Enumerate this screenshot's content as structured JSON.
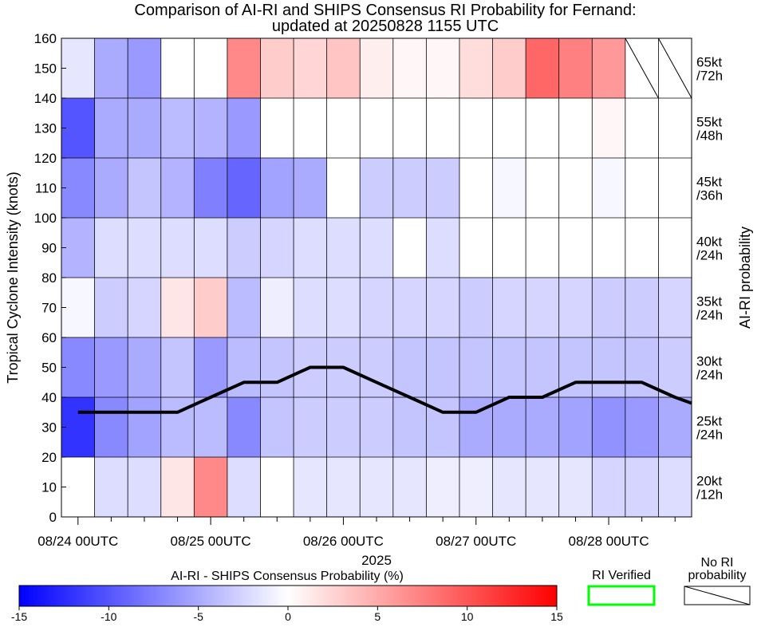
{
  "chart_data": {
    "type": "heatmap",
    "title_line1": "Comparison of AI-RI and SHIPS Consensus RI Probability for Fernand:",
    "title_line2": "updated at 20250828 1155 UTC",
    "ylabel": "Tropical Cyclone Intensity (knots)",
    "right_label": "AI-RI probability",
    "year_label": "2025",
    "ylim": [
      0,
      160
    ],
    "y_ticks": [
      0,
      10,
      20,
      30,
      40,
      50,
      60,
      70,
      80,
      90,
      100,
      110,
      120,
      130,
      140,
      150,
      160
    ],
    "x_tick_labels": [
      "08/24 00UTC",
      "08/25 00UTC",
      "08/26 00UTC",
      "08/27 00UTC",
      "08/28 00UTC"
    ],
    "x_tick_columns": [
      0,
      4,
      8,
      12,
      16
    ],
    "n_columns": 19,
    "column_interval_hours": 6,
    "rows": [
      {
        "label_line1": "20kt",
        "label_line2": "/12h",
        "y0": 0,
        "y1": 20,
        "values": [
          0,
          -2,
          -2,
          1.5,
          7,
          -2,
          0,
          -1.5,
          -1.5,
          -1.5,
          -1.5,
          -1,
          -1,
          -1.5,
          -1.5,
          -1.5,
          -2.5,
          -2.5,
          -2
        ]
      },
      {
        "label_line1": "25kt",
        "label_line2": "/24h",
        "y0": 20,
        "y1": 40,
        "values": [
          -12,
          -7,
          -5.5,
          -4,
          -4,
          -7,
          -3.5,
          -3,
          -3,
          -3,
          -3.5,
          -3.5,
          -5,
          -5,
          -5,
          -5.5,
          -6.5,
          -6,
          -5
        ]
      },
      {
        "label_line1": "30kt",
        "label_line2": "/24h",
        "y0": 40,
        "y1": 60,
        "values": [
          -7,
          -6,
          -5,
          -3.5,
          -6,
          -4,
          -3.5,
          -3,
          -3,
          -3,
          -3.5,
          -3.5,
          -3.5,
          -3.5,
          -3.5,
          -3.5,
          -3.5,
          -3.5,
          -3
        ]
      },
      {
        "label_line1": "35kt",
        "label_line2": "/24h",
        "y0": 60,
        "y1": 80,
        "values": [
          -0.5,
          -3,
          -2.5,
          1.5,
          3,
          -4,
          -1,
          -2,
          -2,
          -2.5,
          -2.5,
          -2.5,
          -3,
          -2.5,
          -2.5,
          -2.5,
          -3,
          -3,
          -2.5
        ]
      },
      {
        "label_line1": "40kt",
        "label_line2": "/24h",
        "y0": 80,
        "y1": 100,
        "values": [
          -4.5,
          -2,
          -2,
          -2,
          -2,
          -3,
          -2.5,
          -2,
          -2,
          -2,
          0,
          -2,
          0,
          0,
          0,
          0,
          0,
          0,
          0
        ]
      },
      {
        "label_line1": "45kt",
        "label_line2": "/36h",
        "y0": 100,
        "y1": 120,
        "values": [
          -7,
          -5,
          -3.5,
          -4.5,
          -7.5,
          -9,
          -5.5,
          -5,
          0,
          -3,
          -3,
          -3,
          0,
          -0.5,
          0,
          0,
          -0.5,
          0,
          0
        ]
      },
      {
        "label_line1": "55kt",
        "label_line2": "/48h",
        "y0": 120,
        "y1": 140,
        "values": [
          -10,
          -5,
          -5,
          -4,
          -4.5,
          -6,
          0,
          0,
          0,
          0,
          0,
          0,
          0,
          0,
          0,
          0,
          0.5,
          0,
          0
        ]
      },
      {
        "label_line1": "65kt",
        "label_line2": "/72h",
        "y0": 140,
        "y1": 160,
        "values": [
          -1.5,
          -5,
          -6,
          0,
          0,
          7,
          3,
          2.5,
          3.5,
          1,
          0.5,
          0.5,
          2,
          3,
          9,
          7.5,
          6,
          null,
          null
        ]
      }
    ],
    "intensity_line": {
      "name": "Intensity (kt)",
      "values": [
        35,
        35,
        35,
        35,
        40,
        45,
        45,
        50,
        50,
        45,
        40,
        35,
        35,
        40,
        40,
        45,
        45,
        45,
        40,
        38
      ]
    },
    "colorbar": {
      "label": "AI-RI - SHIPS Consensus Probability (%)",
      "min": -15,
      "max": 15,
      "ticks": [
        -15,
        -10,
        -5,
        0,
        5,
        10,
        15
      ],
      "color_low": "#0000ff",
      "color_mid": "#ffffff",
      "color_high": "#ff0000"
    },
    "legend": {
      "verified_label": "RI Verified",
      "verified_color": "#00ff00",
      "no_ri_label_line1": "No RI",
      "no_ri_label_line2": "probability"
    }
  }
}
